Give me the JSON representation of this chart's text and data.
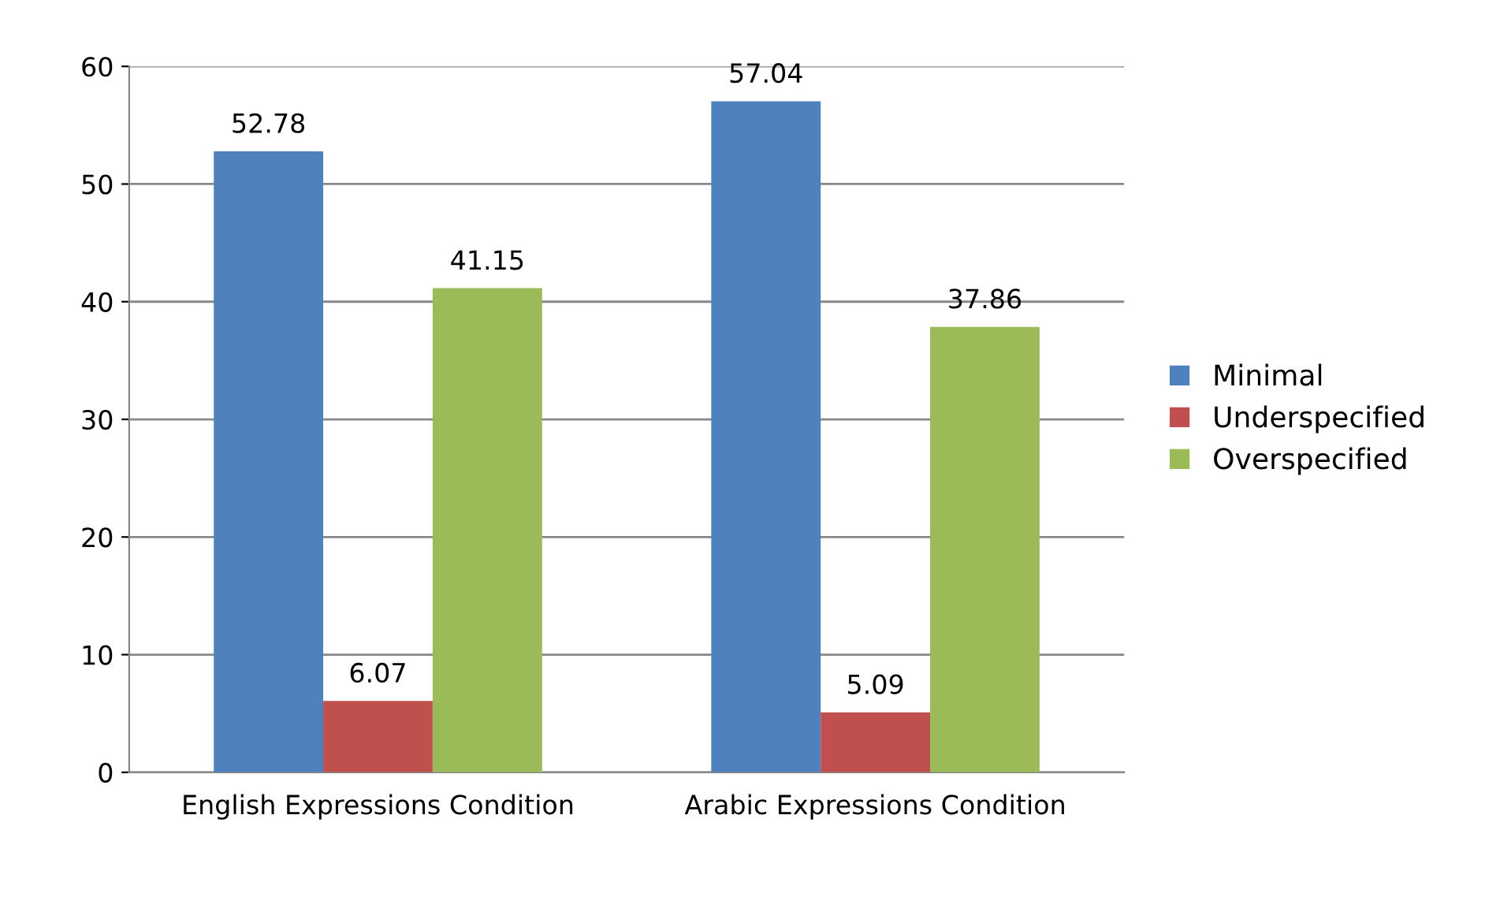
{
  "chart_data": {
    "type": "bar",
    "categories": [
      "English Expressions Condition",
      "Arabic Expressions Condition"
    ],
    "series": [
      {
        "name": "Minimal",
        "color": "#4f81bd",
        "values": [
          52.78,
          57.04
        ]
      },
      {
        "name": "Underspecified",
        "color": "#c0504d",
        "values": [
          6.07,
          5.09
        ]
      },
      {
        "name": "Overspecified",
        "color": "#9bbb59",
        "values": [
          41.15,
          37.86
        ]
      }
    ],
    "ylim": [
      0,
      60
    ],
    "yticks": [
      0,
      10,
      20,
      30,
      40,
      50,
      60
    ],
    "grid": "y",
    "legend": "right",
    "data_labels": true
  }
}
